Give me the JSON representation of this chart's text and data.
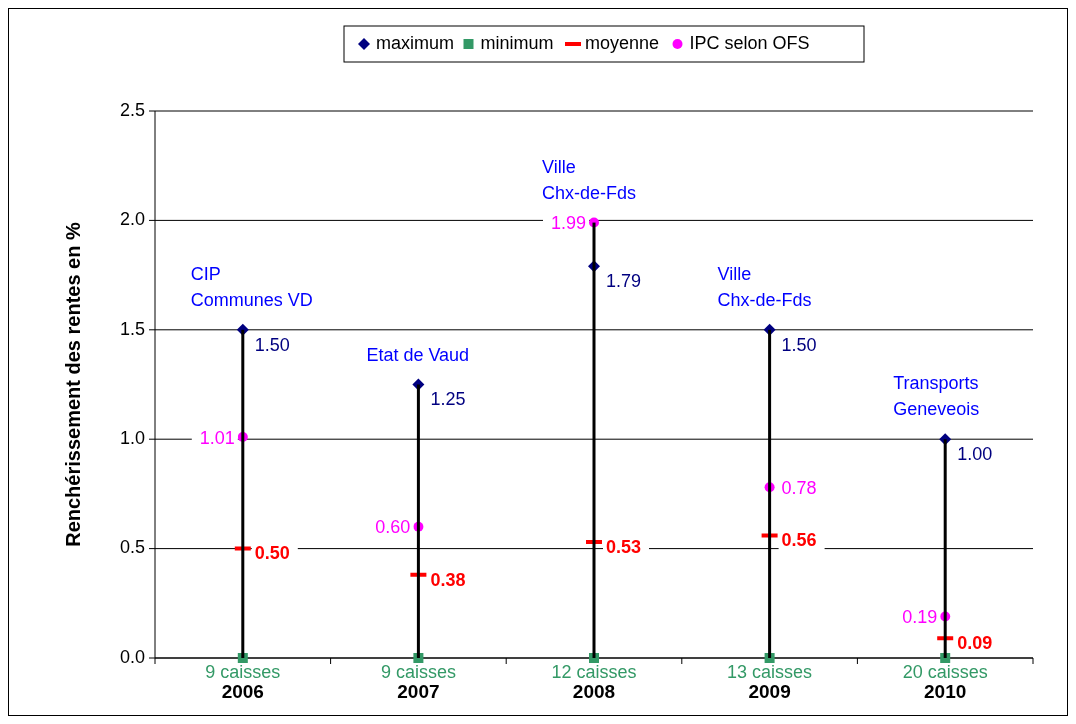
{
  "chart_data": {
    "type": "scatter",
    "categories": [
      "2006",
      "2007",
      "2008",
      "2009",
      "2010"
    ],
    "ylabel": "Renchérissement des rentes en %",
    "ylim": [
      0,
      2.5
    ],
    "yticks": [
      {
        "value": 0,
        "label": "0.0"
      },
      {
        "value": 0.5,
        "label": "0.5"
      },
      {
        "value": 1,
        "label": "1.0"
      },
      {
        "value": 1.5,
        "label": "1.5"
      },
      {
        "value": 2,
        "label": "2.0"
      },
      {
        "value": 2.5,
        "label": "2.5"
      }
    ],
    "grid": "y",
    "legend": "top",
    "series": [
      {
        "type": "bar",
        "color": "#000000",
        "values": [
          1.5,
          1.25,
          1.99,
          1.5,
          1.0
        ]
      },
      {
        "name": "maximum",
        "color": "#000080",
        "marker": "diamond",
        "values": [
          1.5,
          1.25,
          1.79,
          1.5,
          1.0
        ],
        "value_labels": [
          "1.50",
          "1.25",
          "1.79",
          "1.50",
          "1.00"
        ]
      },
      {
        "name": "minimum",
        "color": "#339966",
        "marker": "square",
        "values": [
          0,
          0,
          0,
          0,
          0
        ]
      },
      {
        "name": "moyenne",
        "color": "#ff0000",
        "values": [
          0.5,
          0.38,
          0.53,
          0.56,
          0.09
        ],
        "value_labels": [
          "0.50",
          "0.38",
          "0.53",
          "0.56",
          "0.09"
        ]
      },
      {
        "name": "IPC selon OFS",
        "color": "#ff00ff",
        "marker": "circle",
        "values": [
          1.01,
          0.6,
          1.99,
          0.78,
          0.19
        ],
        "value_labels": [
          "1.01",
          "0.60",
          "1.99",
          "0.78",
          "0.19"
        ]
      }
    ],
    "annotations": [
      {
        "text": "CIP\nCommunes VD",
        "x": "2006",
        "y": 1.5
      },
      {
        "text": "Etat de Vaud",
        "x": "2007",
        "y": 1.25
      },
      {
        "text": "Ville\nChx-de-Fds",
        "x": "2008",
        "y": 1.99
      },
      {
        "text": "Ville\nChx-de-Fds",
        "x": "2009",
        "y": 1.5
      },
      {
        "text": "Transports\nGeneveois",
        "x": "2010",
        "y": 1.0
      },
      "9 caisses",
      "9 caisses",
      "12 caisses",
      "13 caisses",
      "20 caisses"
    ]
  }
}
